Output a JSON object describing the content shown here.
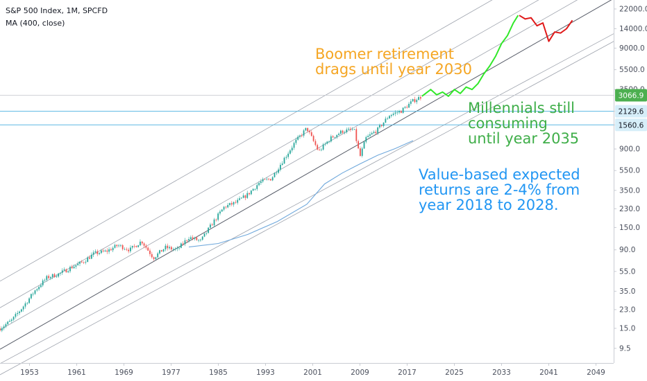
{
  "header": {
    "symbol_line": "S&P 500 Index, 1M, SPCFD",
    "indicator_line": "MA (400, close)"
  },
  "annotations": [
    {
      "lines": [
        "Boomer retirement",
        "drags until year 2030"
      ],
      "color": "#f5a623"
    },
    {
      "lines": [
        "Millennials still",
        "consuming",
        "until year 2035"
      ],
      "color": "#3fae49"
    },
    {
      "lines": [
        "Value-based expected",
        "returns are 2-4% from",
        "year 2018 to 2028."
      ],
      "color": "#2196f3"
    }
  ],
  "price_labels": [
    {
      "text": "3066.9",
      "value": 3066.9,
      "bg": "#4caf50",
      "fg": "#ffffff"
    },
    {
      "text": "2129.6",
      "value": 2129.6,
      "bg": "#d6eef9",
      "fg": "#131722"
    },
    {
      "text": "1560.6",
      "value": 1560.6,
      "bg": "#d6eef9",
      "fg": "#131722"
    }
  ],
  "chart_data": {
    "type": "line",
    "title": "S&P 500 Index, 1M, SPCFD",
    "y_scale": "log",
    "x_range": [
      1948,
      2052
    ],
    "y_range": [
      6.8,
      27000
    ],
    "x_ticks": [
      1953,
      1961,
      1969,
      1977,
      1985,
      1993,
      2001,
      2009,
      2017,
      2025,
      2033,
      2041,
      2049
    ],
    "y_ticks": [
      "22000.0",
      "14000.0",
      "9000.0",
      "5500.0",
      "3500.0",
      "2129.6",
      "1560.6",
      "900.0",
      "550.0",
      "350.0",
      "230.0",
      "150.0",
      "90.0",
      "55.0",
      "35.0",
      "23.0",
      "15.0",
      "9.5"
    ],
    "horizontal_lines": [
      2129.6,
      1560.6
    ],
    "series": [
      {
        "type": "candles",
        "x": [
          1948,
          1950,
          1952,
          1954,
          1956,
          1958,
          1960,
          1962,
          1964,
          1966,
          1968,
          1970,
          1972,
          1974,
          1976,
          1978,
          1980,
          1982,
          1984,
          1986,
          1988,
          1990,
          1992,
          1994,
          1996,
          1998,
          2000,
          2002,
          2004,
          2006,
          2008,
          2009,
          2010,
          2012,
          2014,
          2016,
          2018,
          2019.5
        ],
        "values": [
          15,
          18,
          25,
          36,
          48,
          52,
          60,
          68,
          83,
          87,
          100,
          90,
          110,
          75,
          95,
          90,
          120,
          110,
          165,
          240,
          265,
          320,
          420,
          460,
          700,
          1050,
          1450,
          850,
          1150,
          1350,
          1400,
          750,
          1150,
          1400,
          1950,
          2150,
          2700,
          3000
        ]
      },
      {
        "name": "MA (400, close)",
        "x": [
          1980,
          1985,
          1990,
          1995,
          2000,
          2003,
          2006,
          2009,
          2012,
          2015,
          2018
        ],
        "values": [
          96,
          104,
          128,
          172,
          255,
          405,
          520,
          640,
          780,
          910,
          1090
        ]
      },
      {
        "x": [
          2019.5,
          2021,
          2022,
          2023,
          2024,
          2025,
          2026,
          2027,
          2028,
          2029,
          2030,
          2031,
          2032,
          2033,
          2034,
          2035,
          2035.8
        ],
        "values": [
          3000,
          3500,
          3100,
          3300,
          3000,
          3500,
          3200,
          3700,
          3500,
          4000,
          5000,
          6000,
          7500,
          10000,
          12000,
          16000,
          19000
        ]
      },
      {
        "x": [
          2036,
          2037,
          2038,
          2039,
          2040,
          2041,
          2042,
          2043,
          2044,
          2045
        ],
        "values": [
          19000,
          17500,
          18000,
          15000,
          16000,
          10500,
          13000,
          12700,
          14000,
          17000
        ]
      }
    ],
    "channel_lines": [
      {
        "x": [
          1948,
          2052
        ],
        "y": [
          44,
          132000
        ]
      },
      {
        "x": [
          1948,
          2052
        ],
        "y": [
          24,
          72000
        ]
      },
      {
        "x": [
          1948,
          2052
        ],
        "y": [
          14.5,
          43500
        ]
      },
      {
        "x": [
          1948,
          2052
        ],
        "y": [
          9.3,
          27900
        ]
      },
      {
        "x": [
          1948,
          2052
        ],
        "y": [
          6.7,
          12500
        ]
      },
      {
        "x": [
          1948,
          2052
        ],
        "y": [
          5.2,
          10500
        ]
      }
    ]
  }
}
